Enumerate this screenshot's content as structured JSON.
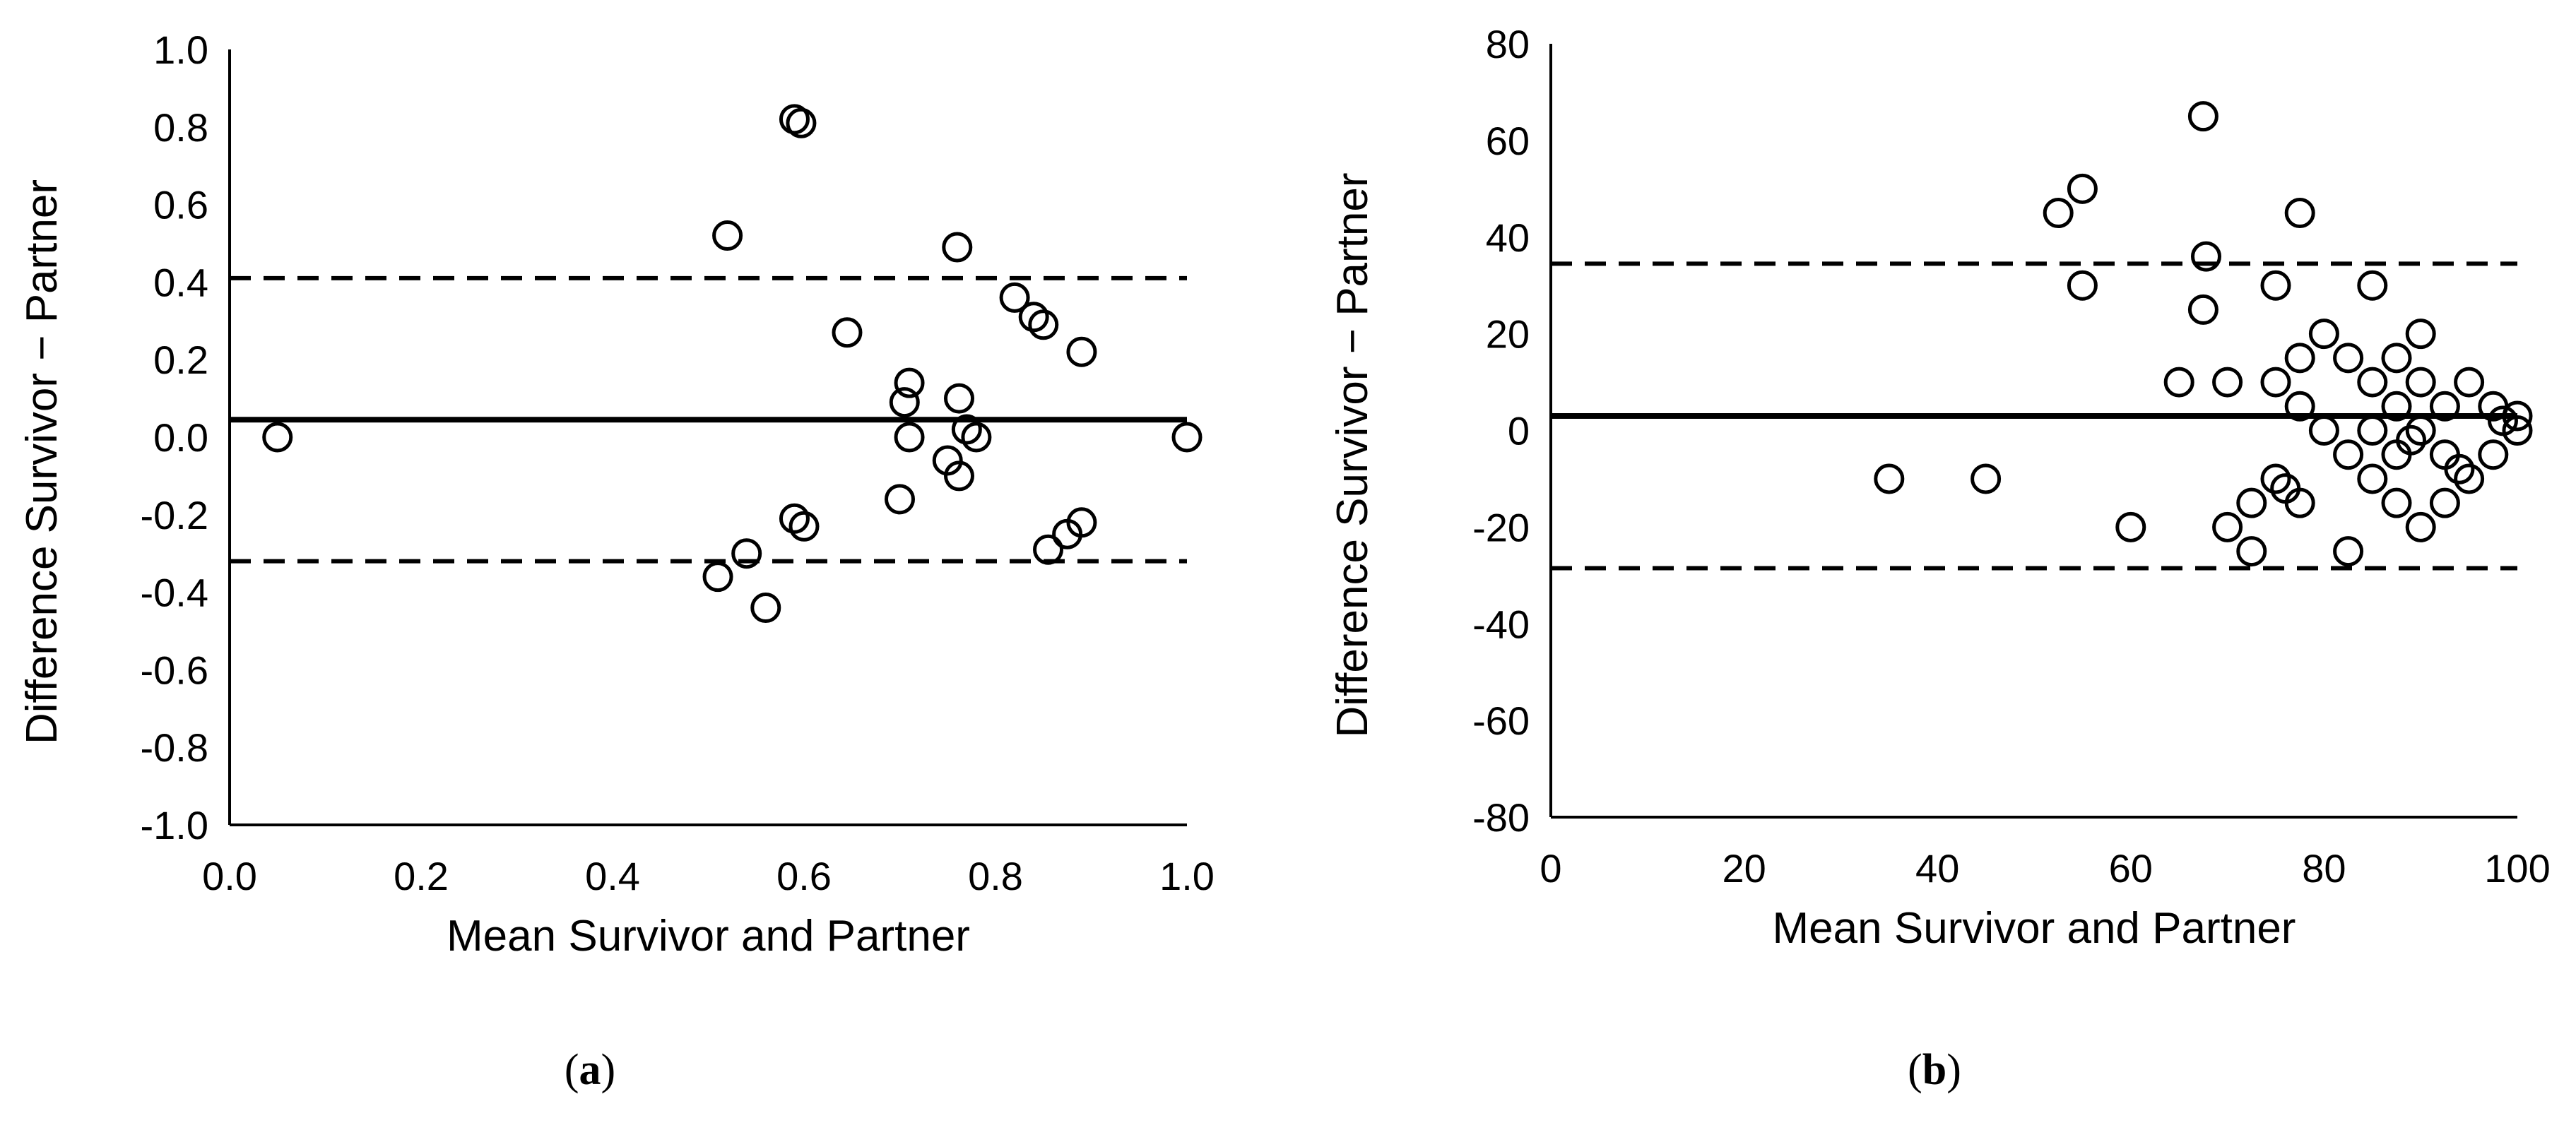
{
  "figure": {
    "panels": [
      {
        "label_open": "(",
        "label_letter": "a",
        "label_close": ")"
      },
      {
        "label_open": "(",
        "label_letter": "b",
        "label_close": ")"
      }
    ]
  },
  "chart_data": [
    {
      "type": "scatter",
      "panel": "a",
      "xlabel": "Mean Survivor and Partner",
      "ylabel": "Difference Survivor − Partner",
      "xlim": [
        0.0,
        1.0
      ],
      "ylim": [
        -1.0,
        1.0
      ],
      "xticks": [
        "0.0",
        "0.2",
        "0.4",
        "0.6",
        "0.8",
        "1.0"
      ],
      "yticks": [
        "1.0",
        "0.8",
        "0.6",
        "0.4",
        "0.2",
        "0.0",
        "-0.2",
        "-0.4",
        "-0.6",
        "-0.8",
        "-1.0"
      ],
      "xtick_values": [
        0.0,
        0.2,
        0.4,
        0.6,
        0.8,
        1.0
      ],
      "ytick_values": [
        1.0,
        0.8,
        0.6,
        0.4,
        0.2,
        0.0,
        -0.2,
        -0.4,
        -0.6,
        -0.8,
        -1.0
      ],
      "grid": false,
      "mean_difference": 0.045,
      "upper_limit": 0.41,
      "lower_limit": -0.32,
      "points": [
        {
          "x": 0.05,
          "y": 0.0
        },
        {
          "x": 0.51,
          "y": -0.36
        },
        {
          "x": 0.52,
          "y": 0.52
        },
        {
          "x": 0.54,
          "y": -0.3
        },
        {
          "x": 0.56,
          "y": -0.44
        },
        {
          "x": 0.59,
          "y": 0.82
        },
        {
          "x": 0.597,
          "y": 0.81
        },
        {
          "x": 0.59,
          "y": -0.21
        },
        {
          "x": 0.6,
          "y": -0.23
        },
        {
          "x": 0.645,
          "y": 0.27
        },
        {
          "x": 0.7,
          "y": -0.16
        },
        {
          "x": 0.705,
          "y": 0.09
        },
        {
          "x": 0.71,
          "y": 0.14
        },
        {
          "x": 0.71,
          "y": 0.0
        },
        {
          "x": 0.75,
          "y": -0.06
        },
        {
          "x": 0.76,
          "y": 0.49
        },
        {
          "x": 0.762,
          "y": 0.1
        },
        {
          "x": 0.762,
          "y": -0.1
        },
        {
          "x": 0.77,
          "y": 0.02
        },
        {
          "x": 0.78,
          "y": 0.0
        },
        {
          "x": 0.82,
          "y": 0.36
        },
        {
          "x": 0.84,
          "y": 0.31
        },
        {
          "x": 0.85,
          "y": 0.29
        },
        {
          "x": 0.855,
          "y": -0.29
        },
        {
          "x": 0.875,
          "y": -0.25
        },
        {
          "x": 0.89,
          "y": 0.22
        },
        {
          "x": 0.89,
          "y": -0.22
        },
        {
          "x": 1.0,
          "y": 0.0
        }
      ]
    },
    {
      "type": "scatter",
      "panel": "b",
      "xlabel": "Mean Survivor and Partner",
      "ylabel": "Difference Survivor − Partner",
      "xlim": [
        0,
        100
      ],
      "ylim": [
        -80,
        80
      ],
      "xticks": [
        "0",
        "20",
        "40",
        "60",
        "80",
        "100"
      ],
      "yticks": [
        "80",
        "60",
        "40",
        "20",
        "0",
        "-20",
        "-40",
        "-60",
        "-80"
      ],
      "xtick_values": [
        0,
        20,
        40,
        60,
        80,
        100
      ],
      "ytick_values": [
        80,
        60,
        40,
        20,
        0,
        -20,
        -40,
        -60,
        -80
      ],
      "grid": false,
      "mean_difference": 3,
      "upper_limit": 34.5,
      "lower_limit": -28.5,
      "points": [
        {
          "x": 35,
          "y": -10
        },
        {
          "x": 45,
          "y": -10
        },
        {
          "x": 52.5,
          "y": 45
        },
        {
          "x": 55,
          "y": 50
        },
        {
          "x": 55,
          "y": 30
        },
        {
          "x": 60,
          "y": -20
        },
        {
          "x": 65,
          "y": 10
        },
        {
          "x": 67.5,
          "y": 65
        },
        {
          "x": 67.8,
          "y": 36
        },
        {
          "x": 67.5,
          "y": 25
        },
        {
          "x": 70,
          "y": 10
        },
        {
          "x": 70,
          "y": -20
        },
        {
          "x": 72.5,
          "y": -15
        },
        {
          "x": 72.5,
          "y": -25
        },
        {
          "x": 75,
          "y": 30
        },
        {
          "x": 75,
          "y": 10
        },
        {
          "x": 75,
          "y": -10
        },
        {
          "x": 76,
          "y": -12
        },
        {
          "x": 77.5,
          "y": 45
        },
        {
          "x": 77.5,
          "y": 15
        },
        {
          "x": 77.5,
          "y": 5
        },
        {
          "x": 77.5,
          "y": -15
        },
        {
          "x": 80,
          "y": 20
        },
        {
          "x": 80,
          "y": 0
        },
        {
          "x": 82.5,
          "y": 15
        },
        {
          "x": 82.5,
          "y": -5
        },
        {
          "x": 82.5,
          "y": -25
        },
        {
          "x": 85,
          "y": 30
        },
        {
          "x": 85,
          "y": 10
        },
        {
          "x": 85,
          "y": 0
        },
        {
          "x": 85,
          "y": -10
        },
        {
          "x": 87.5,
          "y": 15
        },
        {
          "x": 87.5,
          "y": 5
        },
        {
          "x": 87.5,
          "y": -5
        },
        {
          "x": 87.5,
          "y": -15
        },
        {
          "x": 89,
          "y": -2
        },
        {
          "x": 90,
          "y": 20
        },
        {
          "x": 90,
          "y": 10
        },
        {
          "x": 90,
          "y": 0
        },
        {
          "x": 90,
          "y": -20
        },
        {
          "x": 92.5,
          "y": 5
        },
        {
          "x": 92.5,
          "y": -5
        },
        {
          "x": 92.5,
          "y": -15
        },
        {
          "x": 94,
          "y": -8
        },
        {
          "x": 95,
          "y": 10
        },
        {
          "x": 95,
          "y": -10
        },
        {
          "x": 97.5,
          "y": 5
        },
        {
          "x": 97.5,
          "y": -5
        },
        {
          "x": 98.5,
          "y": 2
        },
        {
          "x": 100,
          "y": 3
        },
        {
          "x": 100,
          "y": 0
        }
      ]
    }
  ]
}
